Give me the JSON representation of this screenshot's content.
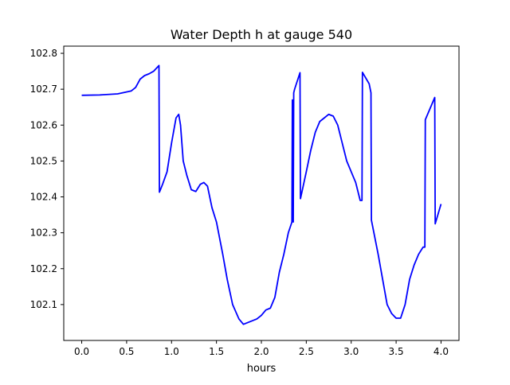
{
  "chart_data": {
    "type": "line",
    "title": "Water Depth h at gauge 540",
    "xlabel": "hours",
    "ylabel": "",
    "xlim": [
      -0.2,
      4.2
    ],
    "ylim": [
      102.0,
      102.82
    ],
    "xticks": [
      0.0,
      0.5,
      1.0,
      1.5,
      2.0,
      2.5,
      3.0,
      3.5,
      4.0
    ],
    "xtick_labels": [
      "0.0",
      "0.5",
      "1.0",
      "1.5",
      "2.0",
      "2.5",
      "3.0",
      "3.5",
      "4.0"
    ],
    "yticks": [
      102.1,
      102.2,
      102.3,
      102.4,
      102.5,
      102.6,
      102.7,
      102.8
    ],
    "ytick_labels": [
      "102.1",
      "102.2",
      "102.3",
      "102.4",
      "102.5",
      "102.6",
      "102.7",
      "102.8"
    ],
    "grid": false,
    "legend": "none",
    "series": [
      {
        "color": "#0000ff",
        "x": [
          0.0,
          0.2,
          0.4,
          0.55,
          0.6,
          0.65,
          0.7,
          0.75,
          0.8,
          0.86,
          0.865,
          0.9,
          0.95,
          1.0,
          1.05,
          1.08,
          1.1,
          1.13,
          1.17,
          1.22,
          1.27,
          1.32,
          1.36,
          1.4,
          1.45,
          1.5,
          1.57,
          1.62,
          1.68,
          1.75,
          1.8,
          1.85,
          1.9,
          1.95,
          2.0,
          2.05,
          2.1,
          2.15,
          2.2,
          2.25,
          2.3,
          2.34,
          2.345,
          2.355,
          2.36,
          2.37,
          2.43,
          2.435,
          2.5,
          2.55,
          2.6,
          2.65,
          2.7,
          2.75,
          2.8,
          2.85,
          2.9,
          2.95,
          3.0,
          3.05,
          3.1,
          3.12,
          3.125,
          3.2,
          3.22,
          3.225,
          3.3,
          3.35,
          3.4,
          3.45,
          3.5,
          3.55,
          3.6,
          3.65,
          3.7,
          3.75,
          3.8,
          3.82,
          3.825,
          3.93,
          3.935,
          4.0
        ],
        "y": [
          102.683,
          102.684,
          102.687,
          102.695,
          102.705,
          102.728,
          102.738,
          102.743,
          102.75,
          102.766,
          102.413,
          102.435,
          102.47,
          102.55,
          102.62,
          102.63,
          102.6,
          102.5,
          102.46,
          102.42,
          102.415,
          102.435,
          102.44,
          102.43,
          102.37,
          102.33,
          102.24,
          102.17,
          102.1,
          102.06,
          102.045,
          102.05,
          102.055,
          102.06,
          102.07,
          102.085,
          102.09,
          102.12,
          102.19,
          102.24,
          102.3,
          102.33,
          102.67,
          102.33,
          102.69,
          102.7,
          102.746,
          102.395,
          102.47,
          102.53,
          102.58,
          102.61,
          102.62,
          102.63,
          102.625,
          102.6,
          102.55,
          102.5,
          102.47,
          102.44,
          102.39,
          102.39,
          102.747,
          102.715,
          102.69,
          102.335,
          102.24,
          102.17,
          102.1,
          102.075,
          102.062,
          102.062,
          102.1,
          102.17,
          102.21,
          102.24,
          102.26,
          102.26,
          102.615,
          102.677,
          102.325,
          102.38
        ]
      }
    ]
  }
}
